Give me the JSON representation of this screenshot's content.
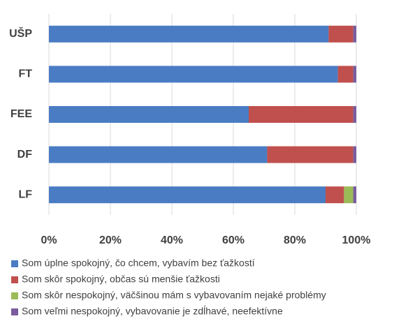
{
  "chart_data": {
    "type": "stacked_barh",
    "categories": [
      "UŠP",
      "FT",
      "FEE",
      "DF",
      "LF"
    ],
    "series": [
      {
        "name": "Som úplne spokojný, čo chcem, vybavím bez ťažkostí",
        "color": "#4a7cc4",
        "values": [
          91,
          94,
          65,
          71,
          90
        ]
      },
      {
        "name": "Som skôr spokojný, občas sú menšie ťažkosti",
        "color": "#c0504d",
        "values": [
          8,
          5,
          34,
          28,
          6
        ]
      },
      {
        "name": "Som skôr nespokojný, väčšinou mám s vybavovaním nejaké problémy",
        "color": "#9bbb59",
        "values": [
          0,
          0,
          0,
          0,
          3
        ]
      },
      {
        "name": "Som veľmi nespokojný, vybavovanie je zdĺhavé, neefektívne",
        "color": "#7a5c9e",
        "values": [
          1,
          1,
          1,
          1,
          1
        ]
      }
    ],
    "xlim": [
      0,
      100
    ],
    "xticks": [
      {
        "value": 0,
        "label": "0%"
      },
      {
        "value": 20,
        "label": "20%"
      },
      {
        "value": 40,
        "label": "40%"
      },
      {
        "value": 60,
        "label": "60%"
      },
      {
        "value": 80,
        "label": "80%"
      },
      {
        "value": 100,
        "label": "100%"
      }
    ],
    "grid": true,
    "legend": "bottom"
  }
}
